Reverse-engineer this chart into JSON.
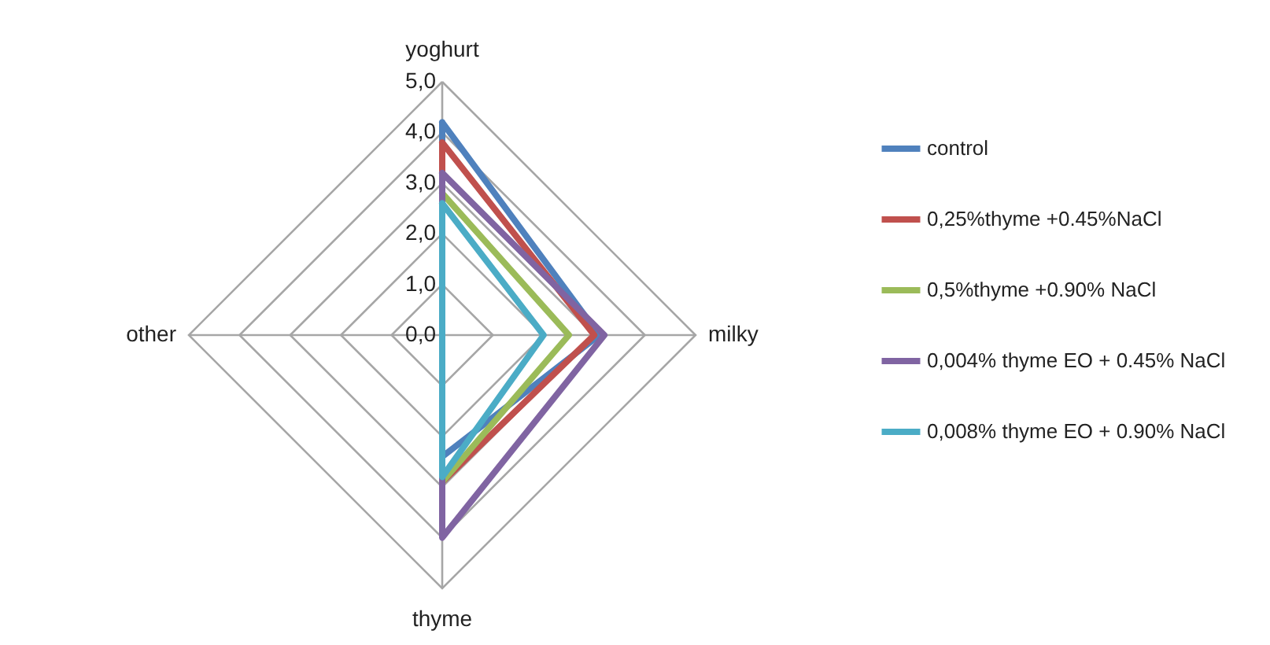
{
  "chart_data": {
    "type": "radar",
    "categories": [
      "yoghurt",
      "milky",
      "thyme",
      "other"
    ],
    "ylim": [
      0,
      5
    ],
    "yticks": [
      {
        "value": 0,
        "label": "0,0"
      },
      {
        "value": 1,
        "label": "1,0"
      },
      {
        "value": 2,
        "label": "2,0"
      },
      {
        "value": 3,
        "label": "3,0"
      },
      {
        "value": 4,
        "label": "4,0"
      },
      {
        "value": 5,
        "label": "5,0"
      }
    ],
    "grid": true,
    "legend": "right",
    "marker": "none",
    "line_style": "solid",
    "series": [
      {
        "name": "control",
        "color": "#4f81bd",
        "values": [
          4.2,
          3.1,
          2.4,
          0
        ]
      },
      {
        "name": "0,25%thyme +0.45%NaCl",
        "color": "#c0504d",
        "values": [
          3.8,
          3.0,
          2.9,
          0
        ]
      },
      {
        "name": "0,5%thyme +0.90% NaCl",
        "color": "#9bbb59",
        "values": [
          2.8,
          2.5,
          2.9,
          0
        ]
      },
      {
        "name": "0,004% thyme EO + 0.45% NaCl",
        "color": "#8064a2",
        "values": [
          3.2,
          3.2,
          4.0,
          0
        ]
      },
      {
        "name": "0,008% thyme EO + 0.90% NaCl",
        "color": "#4bacc6",
        "values": [
          2.6,
          2.0,
          2.8,
          0
        ]
      }
    ]
  }
}
